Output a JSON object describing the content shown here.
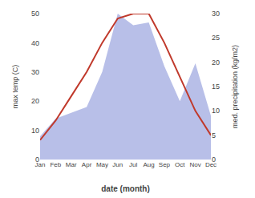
{
  "chart_data": {
    "type": "line",
    "categories": [
      "Jan",
      "Feb",
      "Mar",
      "Apr",
      "May",
      "Jun",
      "Jul",
      "Aug",
      "Sep",
      "Oct",
      "Nov",
      "Dec"
    ],
    "xlabel": "date (month)",
    "ylabel": "max temp (C)",
    "y2label": "med. precipitation (kg/m2)",
    "ylim": [
      0,
      50
    ],
    "yticks": [
      0,
      10,
      20,
      30,
      40,
      50
    ],
    "y2lim": [
      0,
      30
    ],
    "y2ticks": [
      0,
      5,
      10,
      15,
      20,
      25,
      30
    ],
    "grid": false,
    "series": [
      {
        "type": "area",
        "color": "#b8bfe8",
        "values": [
          8,
          14,
          16,
          18,
          30,
          50,
          46,
          47,
          32,
          20,
          33,
          15
        ]
      },
      {
        "type": "line",
        "color": "#c0392b",
        "axis": "y2",
        "values": [
          4,
          8,
          13,
          18,
          24,
          29,
          30,
          30,
          24,
          17,
          10,
          5
        ]
      }
    ]
  }
}
